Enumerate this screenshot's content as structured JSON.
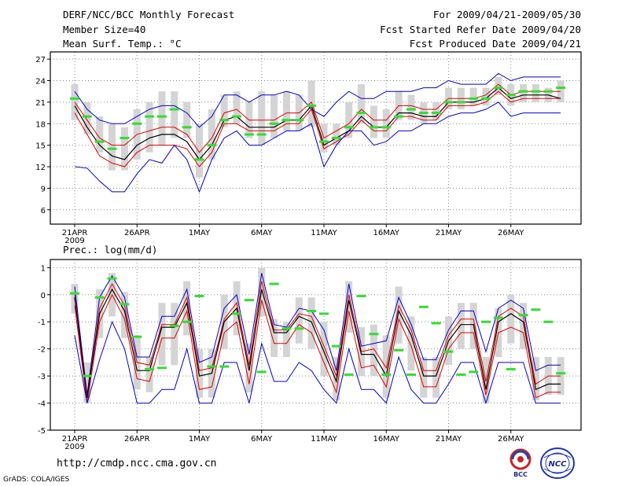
{
  "header": {
    "title": "DERF/NCC/BCC Monthly Forecast",
    "member_size": "Member Size=40",
    "variable1": "Mean Surf. Temp.: °C",
    "for_range": "For 2009/04/21-2009/05/30",
    "fcst_started": "Fcst Started Refer Date 2009/04/20",
    "fcst_produced": "Fcst Produced Date 2009/04/21"
  },
  "panel2_label": "Prec.: log(mm/d)",
  "footer": {
    "url": "http://cmdp.ncc.cma.gov.cn",
    "credit": "GrADS: COLA/IGES",
    "logo1_text": "BCC",
    "logo2_text": "NCC"
  },
  "colors": {
    "mean": "#000000",
    "spread_inner": "#dd0000",
    "spread_outer": "#0000cc",
    "box": "#d4d4d4",
    "observed": "#33dd33",
    "grid": "#888888"
  },
  "chart_data": [
    {
      "type": "line",
      "title": "Mean Surf. Temp.: °C",
      "x_day_offset": [
        0,
        1,
        2,
        3,
        4,
        5,
        6,
        7,
        8,
        9,
        10,
        11,
        12,
        13,
        14,
        15,
        16,
        17,
        18,
        19,
        20,
        21,
        22,
        23,
        24,
        25,
        26,
        27,
        28,
        29,
        30,
        31,
        32,
        33,
        34,
        35,
        36,
        37,
        38,
        39
      ],
      "xtick_labels": [
        "21APR",
        "26APR",
        "1MAY",
        "6MAY",
        "11MAY",
        "16MAY",
        "21MAY",
        "26MAY"
      ],
      "xtick_offsets": [
        0,
        5,
        10,
        15,
        20,
        25,
        30,
        35
      ],
      "xyear_label": "2009",
      "yticks": [
        "6",
        "9",
        "12",
        "15",
        "18",
        "21",
        "24",
        "27"
      ],
      "ylim": [
        4,
        28
      ],
      "series": [
        {
          "name": "max",
          "values": [
            22.5,
            20,
            18.5,
            18,
            18,
            19,
            20,
            20.5,
            20.5,
            19.5,
            17.5,
            19,
            22,
            22,
            21,
            22,
            22,
            22.5,
            22,
            20,
            19,
            21,
            22.5,
            21.5,
            21.5,
            22.5,
            22.5,
            22.5,
            23,
            23,
            24,
            23.5,
            23.5,
            23.5,
            25,
            24,
            24.5,
            24.5,
            24.5,
            24.5
          ]
        },
        {
          "name": "upper",
          "values": [
            21,
            18.5,
            16,
            15,
            15,
            16.5,
            17,
            17.5,
            17.5,
            16.5,
            14,
            16,
            19.5,
            20,
            18.5,
            18.5,
            18.5,
            19.5,
            19.5,
            21,
            16,
            17,
            18,
            20,
            18.5,
            18.5,
            20.5,
            20.5,
            20,
            20,
            21.5,
            21.5,
            21.5,
            22,
            23.5,
            22,
            22.5,
            22.5,
            22.5,
            22.5
          ]
        },
        {
          "name": "mean",
          "values": [
            20.5,
            17.5,
            15,
            13.5,
            13,
            15,
            16,
            16.5,
            16.5,
            15.5,
            13,
            15,
            18.5,
            19,
            17.5,
            17.5,
            17.5,
            18.5,
            18.5,
            20.5,
            15,
            16,
            17,
            19,
            17.5,
            17.5,
            19.5,
            19.5,
            19,
            19,
            21,
            21,
            21,
            21.5,
            23,
            21.5,
            22,
            22,
            22,
            21.5
          ]
        },
        {
          "name": "lower",
          "values": [
            19.5,
            16.5,
            13.5,
            12.5,
            12,
            14,
            15,
            15,
            15,
            14.5,
            12,
            14,
            18,
            18,
            17,
            17,
            17,
            18,
            18,
            20,
            14.5,
            15.5,
            16.5,
            18.5,
            17,
            17,
            19,
            19,
            18.5,
            18.5,
            20.5,
            20.5,
            20.5,
            21,
            22.5,
            21,
            21.5,
            21.5,
            21.5,
            21.5
          ]
        },
        {
          "name": "min",
          "values": [
            12,
            11.8,
            10,
            8.5,
            8.5,
            11,
            13,
            12.5,
            15,
            13,
            8.5,
            13,
            16,
            17,
            15,
            15,
            16,
            17,
            17,
            18,
            12,
            15,
            17,
            17,
            15,
            15.5,
            17,
            17,
            18,
            18,
            19,
            19.5,
            19.5,
            20,
            21,
            19,
            19.5,
            19.5,
            19.5,
            19.5
          ]
        }
      ],
      "box_range": [
        [
          23.5,
          18.5
        ],
        [
          21,
          16.5
        ],
        [
          19,
          14
        ],
        [
          18,
          11.5
        ],
        [
          17.5,
          11.5
        ],
        [
          20,
          13
        ],
        [
          21,
          14
        ],
        [
          22.5,
          15
        ],
        [
          22.5,
          16
        ],
        [
          21,
          16
        ],
        [
          18,
          10.5
        ],
        [
          20,
          13
        ],
        [
          22,
          17.5
        ],
        [
          22.5,
          18
        ],
        [
          21,
          16
        ],
        [
          22.5,
          15
        ],
        [
          22,
          16
        ],
        [
          22.5,
          17
        ],
        [
          22,
          17
        ],
        [
          24,
          17.5
        ],
        [
          18,
          14
        ],
        [
          18,
          15
        ],
        [
          21,
          16
        ],
        [
          23.5,
          18
        ],
        [
          20.5,
          16
        ],
        [
          20,
          16
        ],
        [
          22.5,
          18.5
        ],
        [
          22,
          18.5
        ],
        [
          21,
          18
        ],
        [
          21,
          18.5
        ],
        [
          23,
          20
        ],
        [
          23,
          20
        ],
        [
          23,
          20.5
        ],
        [
          23,
          20.5
        ],
        [
          24.5,
          22
        ],
        [
          23.5,
          20.5
        ],
        [
          23.5,
          21
        ],
        [
          23.5,
          21
        ],
        [
          23,
          21
        ],
        [
          24,
          21
        ]
      ],
      "observed": [
        21.5,
        19,
        15.5,
        14.5,
        16,
        18,
        19,
        19,
        20,
        17.5,
        13,
        15,
        18.5,
        19,
        16.5,
        16.5,
        18,
        18.5,
        18.5,
        20.5,
        15.5,
        16,
        17.5,
        19.5,
        17.5,
        17.5,
        19,
        20,
        19.5,
        19.5,
        21,
        21,
        21.5,
        21.5,
        23,
        22,
        22.5,
        22.5,
        22.5,
        23
      ]
    },
    {
      "type": "line",
      "title": "Prec.: log(mm/d)",
      "x_day_offset": [
        0,
        1,
        2,
        3,
        4,
        5,
        6,
        7,
        8,
        9,
        10,
        11,
        12,
        13,
        14,
        15,
        16,
        17,
        18,
        19,
        20,
        21,
        22,
        23,
        24,
        25,
        26,
        27,
        28,
        29,
        30,
        31,
        32,
        33,
        34,
        35,
        36,
        37,
        38,
        39
      ],
      "xtick_labels": [
        "21APR",
        "26APR",
        "1MAY",
        "6MAY",
        "11MAY",
        "16MAY",
        "21MAY",
        "26MAY"
      ],
      "xtick_offsets": [
        0,
        5,
        10,
        15,
        20,
        25,
        30,
        35
      ],
      "xyear_label": "2009",
      "yticks": [
        "-5",
        "-4",
        "-3",
        "-2",
        "-1",
        "0",
        "1"
      ],
      "ylim": [
        -5,
        1.3
      ],
      "series": [
        {
          "name": "max",
          "values": [
            0.3,
            -3.7,
            -0.1,
            0.7,
            -0.1,
            -2.3,
            -2.3,
            -0.8,
            -0.8,
            0.2,
            -2.5,
            -2.3,
            -0.5,
            0,
            -2.2,
            0.8,
            -1.1,
            -1.2,
            -0.5,
            -0.6,
            -1.3,
            -2.8,
            0.4,
            -1.9,
            -1.8,
            -1.7,
            -0.1,
            -1.1,
            -2.4,
            -2.4,
            -1.3,
            -0.6,
            -0.6,
            -2.1,
            -0.5,
            -0.2,
            -0.5,
            -2.8,
            -2.6,
            -2.6
          ]
        },
        {
          "name": "upper",
          "values": [
            0,
            -3.8,
            -0.5,
            0.4,
            -0.4,
            -2.5,
            -2.6,
            -1.1,
            -1.1,
            -0.1,
            -2.8,
            -2.7,
            -0.9,
            -0.3,
            -2.6,
            0.5,
            -1.3,
            -1.3,
            -0.7,
            -0.8,
            -1.9,
            -3,
            0,
            -2.1,
            -2,
            -2.7,
            -0.4,
            -1.3,
            -2.8,
            -2.8,
            -1.5,
            -0.9,
            -0.9,
            -3.2,
            -0.8,
            -0.5,
            -0.8,
            -3.3,
            -3,
            -3
          ]
        },
        {
          "name": "mean",
          "values": [
            -0.1,
            -3.8,
            -0.7,
            0.2,
            -0.6,
            -2.8,
            -2.8,
            -1.2,
            -1.2,
            -0.3,
            -3,
            -2.9,
            -1,
            -0.5,
            -2.8,
            0.2,
            -1.4,
            -1.4,
            -0.8,
            -1,
            -2.1,
            -3.2,
            -0.2,
            -2.2,
            -2.2,
            -3,
            -0.6,
            -1.5,
            -3,
            -3,
            -1.7,
            -1.1,
            -1.1,
            -3.5,
            -1,
            -0.7,
            -1,
            -3.5,
            -3.3,
            -3.3
          ]
        },
        {
          "name": "lower",
          "values": [
            -0.4,
            -4,
            -1,
            0,
            -0.9,
            -3.1,
            -3.2,
            -1.6,
            -1.6,
            -0.6,
            -3.5,
            -3.4,
            -1.4,
            -1,
            -3.3,
            -0.2,
            -1.8,
            -1.8,
            -1.1,
            -1.4,
            -2.5,
            -3.6,
            -0.6,
            -2.7,
            -2.6,
            -3.4,
            -0.9,
            -1.9,
            -3.4,
            -3.4,
            -2,
            -1.4,
            -1.4,
            -3.7,
            -1.4,
            -1.2,
            -1.4,
            -3.8,
            -3.6,
            -3.6
          ]
        },
        {
          "name": "min",
          "values": [
            -1.5,
            -4,
            -2.4,
            -1,
            -2,
            -4,
            -4,
            -3.5,
            -3.5,
            -2,
            -4,
            -4,
            -2.5,
            -2.5,
            -4,
            -1.8,
            -3.2,
            -3.2,
            -2.5,
            -2.8,
            -3.5,
            -4,
            -2,
            -3.5,
            -3.5,
            -4,
            -2.3,
            -3.5,
            -4,
            -4,
            -3.3,
            -2.5,
            -2.5,
            -4,
            -2.5,
            -2.5,
            -2.5,
            -4,
            -4,
            -4
          ]
        }
      ],
      "box_range": [
        [
          0.4,
          -0.7
        ],
        [
          -2.5,
          -4
        ],
        [
          0.2,
          -1.6
        ],
        [
          0.8,
          -0.8
        ],
        [
          0.1,
          -1.6
        ],
        [
          -1.5,
          -3.5
        ],
        [
          -2.3,
          -3.6
        ],
        [
          -0.3,
          -2.6
        ],
        [
          -0.3,
          -2.6
        ],
        [
          0.5,
          -1.5
        ],
        [
          -2,
          -3.8
        ],
        [
          -2,
          -3.8
        ],
        [
          0,
          -2
        ],
        [
          0.5,
          -1.5
        ],
        [
          -1.8,
          -3.6
        ],
        [
          1,
          -0.8
        ],
        [
          -0.9,
          -2.3
        ],
        [
          -1,
          -2.3
        ],
        [
          -0.1,
          -1.8
        ],
        [
          -0.1,
          -2
        ],
        [
          -1,
          -3
        ],
        [
          -2.3,
          -3.9
        ],
        [
          0.5,
          -1.4
        ],
        [
          -1.2,
          -3
        ],
        [
          -1.1,
          -3
        ],
        [
          -1.5,
          -3.8
        ],
        [
          0.3,
          -1.8
        ],
        [
          -0.8,
          -2.8
        ],
        [
          -2.3,
          -3.8
        ],
        [
          -2.3,
          -3.8
        ],
        [
          -0.8,
          -2.6
        ],
        [
          -0.3,
          -2
        ],
        [
          -0.3,
          -2
        ],
        [
          -2.3,
          -4
        ],
        [
          -0.5,
          -2.3
        ],
        [
          0,
          -1.8
        ],
        [
          -0.3,
          -2
        ],
        [
          -2.3,
          -3.9
        ],
        [
          -2.3,
          -3.7
        ],
        [
          -2.3,
          -3.7
        ]
      ],
      "observed": [
        0.05,
        -3,
        -0.1,
        0.6,
        -0.35,
        -1.55,
        -2.75,
        -2.7,
        -1.15,
        -1,
        -0.05,
        -2.65,
        -2.65,
        -0.7,
        -0.2,
        -2.85,
        0.4,
        -1.25,
        -1.25,
        -0.6,
        -0.7,
        -1.9,
        -2.95,
        -0.05,
        -1.45,
        -2.95,
        -2.05,
        -2.95,
        -0.45,
        -1.05,
        -2.1,
        -2.95,
        -2.85,
        -1,
        -0.85,
        -2.75,
        -0.75,
        -0.55,
        -1,
        -2.9
      ]
    }
  ]
}
